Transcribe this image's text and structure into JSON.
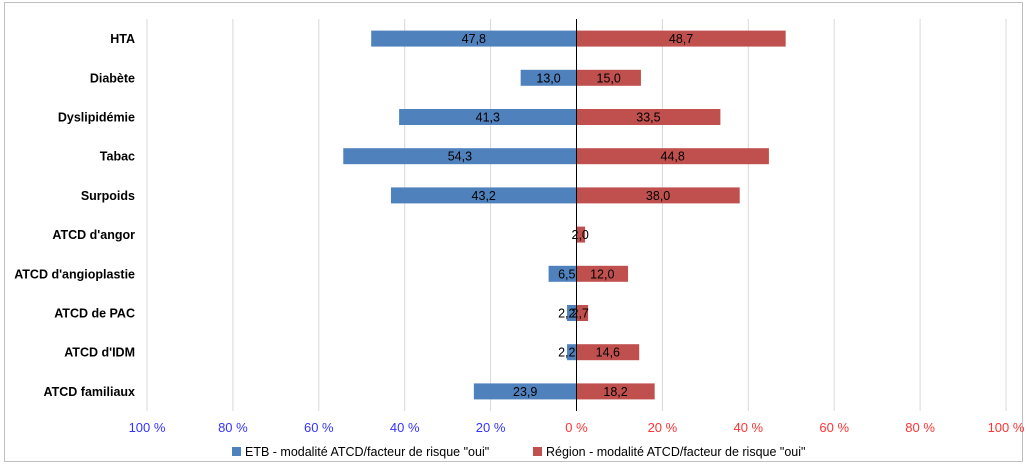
{
  "chart_data": {
    "type": "bar",
    "orientation": "horizontal-diverging",
    "categories": [
      "HTA",
      "Diabète",
      "Dyslipidémie",
      "Tabac",
      "Surpoids",
      "ATCD d'angor",
      "ATCD d'angioplastie",
      "ATCD de PAC",
      "ATCD d'IDM",
      "ATCD familiaux"
    ],
    "series": [
      {
        "name": "ETB - modalité ATCD/facteur de risque \"oui\"",
        "color": "#4F81BD",
        "values": [
          47.8,
          13.0,
          41.3,
          54.3,
          43.2,
          null,
          6.5,
          2.2,
          2.2,
          23.9
        ],
        "labels": [
          "47,8",
          "13,0",
          "41,3",
          "54,3",
          "43,2",
          "",
          "6,5",
          "2,2",
          "2,2",
          "23,9"
        ],
        "side": "left"
      },
      {
        "name": "Région - modalité ATCD/facteur de risque \"oui\"",
        "color": "#C0504D",
        "values": [
          48.7,
          15.0,
          33.5,
          44.8,
          38.0,
          2.0,
          12.0,
          2.7,
          14.6,
          18.2
        ],
        "labels": [
          "48,7",
          "15,0",
          "33,5",
          "44,8",
          "38,0",
          "2,0",
          "12,0",
          "2,7",
          "14,6",
          "18,2"
        ],
        "side": "right"
      }
    ],
    "xlim": [
      -100,
      100
    ],
    "xticks": [
      -100,
      -80,
      -60,
      -40,
      -20,
      0,
      20,
      40,
      60,
      80,
      100
    ],
    "xtick_labels": [
      "100 %",
      "80 %",
      "60 %",
      "40 %",
      "20 %",
      "0 %",
      "20 %",
      "40 %",
      "60 %",
      "80 %",
      "100 %"
    ],
    "xtick_colors": [
      "#3333FF",
      "#3333FF",
      "#3333FF",
      "#3333FF",
      "#3333FF",
      "#FF3333",
      "#FF3333",
      "#FF3333",
      "#FF3333",
      "#FF3333",
      "#FF3333"
    ],
    "grid": true,
    "legend_position": "bottom"
  }
}
